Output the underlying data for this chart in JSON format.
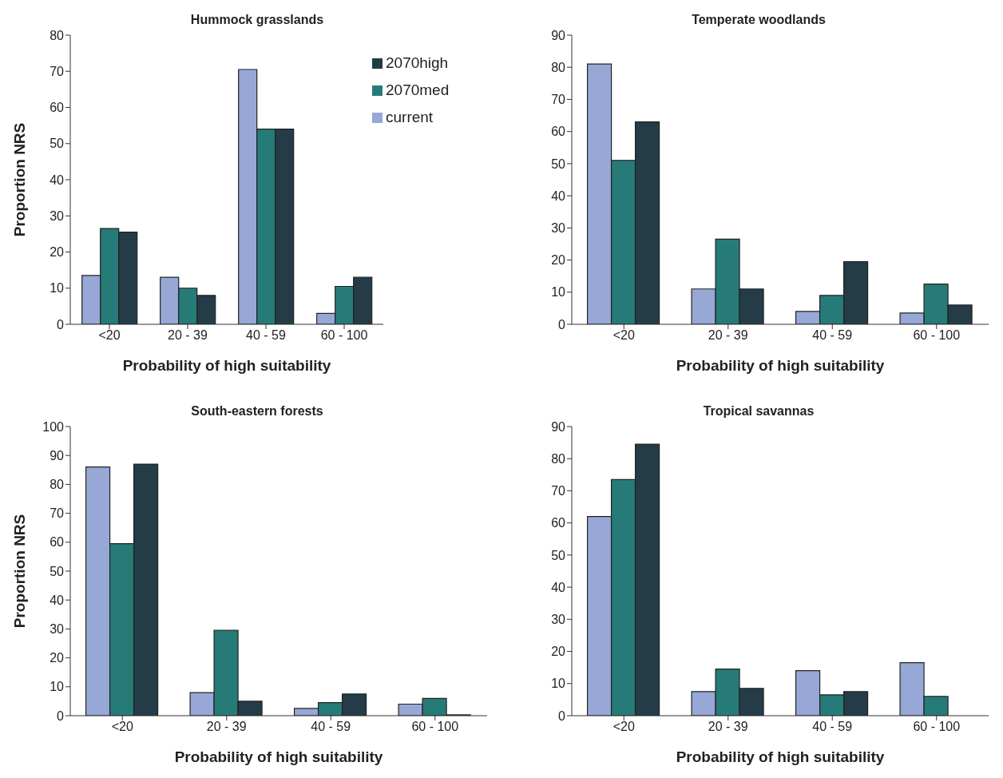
{
  "chart_data": [
    {
      "type": "bar",
      "title": "Hummock grasslands",
      "xlabel": "Probability of high suitability",
      "ylabel": "Proportion NRS",
      "categories": [
        "<20",
        "20 - 39",
        "40 - 59",
        "60 - 100"
      ],
      "ylim": [
        0,
        80
      ],
      "yticks": [
        0,
        10,
        20,
        30,
        40,
        50,
        60,
        70,
        80
      ],
      "legend": "top right",
      "series": [
        {
          "name": "current",
          "color": "#97a8d6",
          "values": [
            13.5,
            13,
            70.5,
            3
          ]
        },
        {
          "name": "2070med",
          "color": "#267b78",
          "values": [
            26.5,
            10,
            54,
            10.5
          ]
        },
        {
          "name": "2070high",
          "color": "#243c47",
          "values": [
            25.5,
            8,
            54,
            13
          ]
        }
      ]
    },
    {
      "type": "bar",
      "title": "Temperate woodlands",
      "xlabel": "Probability of high suitability",
      "categories": [
        "<20",
        "20 - 39",
        "40 - 59",
        "60 - 100"
      ],
      "ylim": [
        0,
        90
      ],
      "yticks": [
        0,
        10,
        20,
        30,
        40,
        50,
        60,
        70,
        80,
        90
      ],
      "series": [
        {
          "color": "#97a8d6",
          "values": [
            81,
            11,
            4,
            3.5
          ]
        },
        {
          "color": "#267b78",
          "values": [
            51,
            26.5,
            9,
            12.5
          ]
        },
        {
          "color": "#243c47",
          "values": [
            63,
            11,
            19.5,
            6
          ]
        }
      ]
    },
    {
      "type": "bar",
      "title": "South-eastern forests",
      "xlabel": "Probability of high suitability",
      "ylabel": "Proportion NRS",
      "categories": [
        "<20",
        "20 - 39",
        "40 - 59",
        "60 - 100"
      ],
      "ylim": [
        0,
        100
      ],
      "yticks": [
        0,
        10,
        20,
        30,
        40,
        50,
        60,
        70,
        80,
        90,
        100
      ],
      "series": [
        {
          "color": "#97a8d6",
          "values": [
            86,
            8,
            2.5,
            4
          ]
        },
        {
          "color": "#267b78",
          "values": [
            59.5,
            29.5,
            4.5,
            6
          ]
        },
        {
          "color": "#243c47",
          "values": [
            87,
            5,
            7.5,
            0.3
          ]
        }
      ]
    },
    {
      "type": "bar",
      "title": "Tropical savannas",
      "xlabel": "Probability of high suitability",
      "categories": [
        "<20",
        "20 - 39",
        "40 - 59",
        "60 - 100"
      ],
      "ylim": [
        0,
        90
      ],
      "yticks": [
        0,
        10,
        20,
        30,
        40,
        50,
        60,
        70,
        80,
        90
      ],
      "series": [
        {
          "color": "#97a8d6",
          "values": [
            62,
            7.5,
            14,
            16.5
          ]
        },
        {
          "color": "#267b78",
          "values": [
            73.5,
            14.5,
            6.5,
            6
          ]
        },
        {
          "color": "#243c47",
          "values": [
            84.5,
            8.5,
            7.5,
            0
          ]
        }
      ]
    }
  ]
}
